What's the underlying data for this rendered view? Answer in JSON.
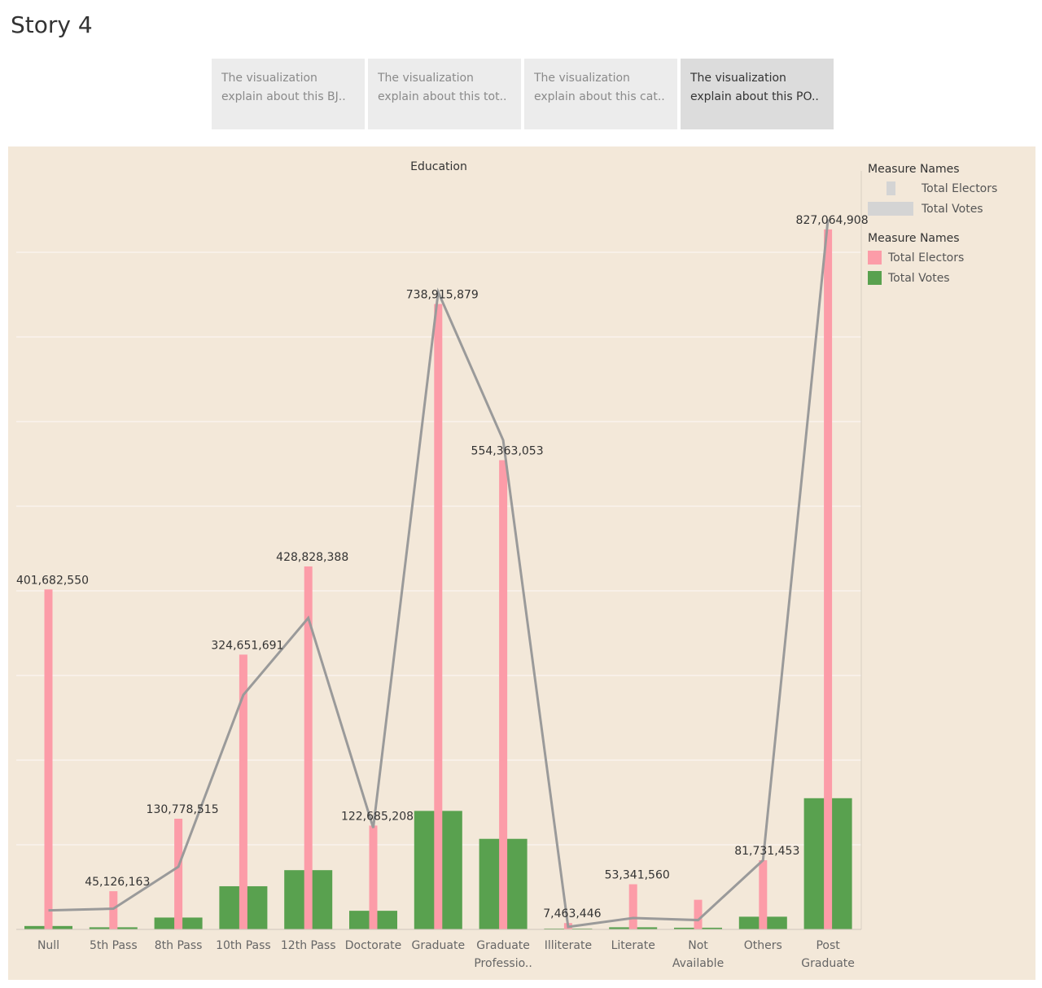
{
  "story_title": "Story 4",
  "story_points": [
    {
      "line1": "The visualization",
      "line2": "explain about this BJ..",
      "active": false
    },
    {
      "line1": "The visualization",
      "line2": "explain about this tot..",
      "active": false
    },
    {
      "line1": "The visualization",
      "line2": "explain about this cat..",
      "active": false
    },
    {
      "line1": "The visualization",
      "line2": "explain about this PO..",
      "active": true
    }
  ],
  "legend_line": {
    "title": "Measure Names",
    "items": [
      {
        "label": "Total Electors",
        "color": "#d4d4d4"
      },
      {
        "label": "Total Votes",
        "color": "#d4d4d4"
      }
    ]
  },
  "legend_bar": {
    "title": "Measure Names",
    "items": [
      {
        "label": "Total Electors",
        "color": "#fc9ca8"
      },
      {
        "label": "Total Votes",
        "color": "#59a14f"
      }
    ]
  },
  "chart_data": {
    "type": "bar",
    "title": "Education",
    "categories": [
      [
        "Null"
      ],
      [
        "5th Pass"
      ],
      [
        "8th Pass"
      ],
      [
        "10th Pass"
      ],
      [
        "12th Pass"
      ],
      [
        "Doctorate"
      ],
      [
        "Graduate"
      ],
      [
        "Graduate",
        "Professio.."
      ],
      [
        "Illiterate"
      ],
      [
        "Literate"
      ],
      [
        "Not",
        "Available"
      ],
      [
        "Others"
      ],
      [
        "Post",
        "Graduate"
      ]
    ],
    "series": [
      {
        "name": "Total Electors",
        "color": "#fc9ca8",
        "values": [
          401682550,
          45126163,
          130778515,
          324651691,
          428828388,
          122685208,
          738915879,
          554363053,
          7463446,
          53341560,
          35000000,
          81731453,
          827064908
        ]
      },
      {
        "name": "Total Votes",
        "color": "#59a14f",
        "values": [
          4000000,
          2500000,
          14000000,
          51000000,
          70000000,
          22000000,
          140000000,
          107000000,
          1000000,
          2500000,
          2000000,
          15000000,
          155000000
        ]
      }
    ],
    "line": {
      "name": "Total Electors",
      "color": "#9a9a9a",
      "values": [
        22500000,
        24500000,
        74000000,
        277000000,
        368000000,
        120000000,
        753000000,
        578000000,
        3000000,
        13500000,
        11000000,
        81731453,
        839000000
      ]
    },
    "data_labels": {
      "values": [
        401682550,
        45126163,
        130778515,
        324651691,
        428828388,
        122685208,
        738915879,
        554363053,
        7463446,
        53341560,
        null,
        81731453,
        827064908
      ],
      "text": [
        "401,682,550",
        "45,126,163",
        "130,778,515",
        "324,651,691",
        "428,828,388",
        "122,685,208",
        "738,915,879",
        "554,363,053",
        "7,463,446",
        "53,341,560",
        "",
        "81,731,453",
        "827,064,908"
      ]
    },
    "ylim": [
      0,
      880000000
    ],
    "gridlines": [
      100000000,
      200000000,
      300000000,
      400000000,
      500000000,
      600000000,
      700000000,
      800000000
    ],
    "grid": true,
    "legend_position": "right"
  }
}
